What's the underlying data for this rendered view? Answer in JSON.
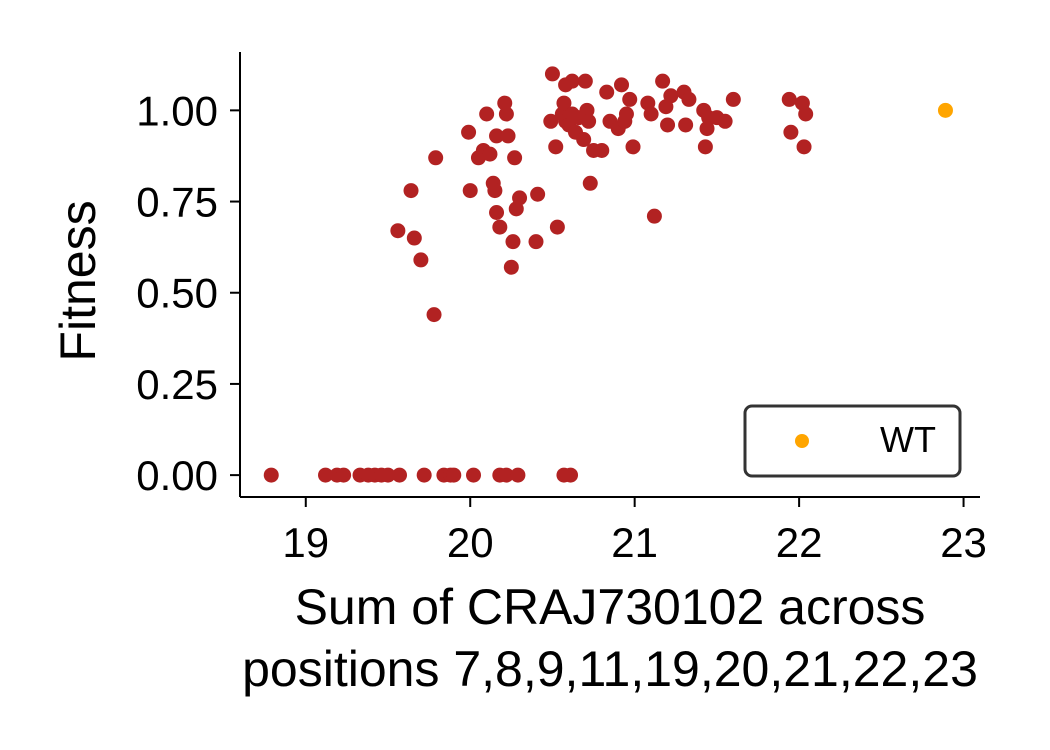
{
  "chart_data": {
    "type": "scatter",
    "xlabel_lines": [
      "Sum of CRAJ730102 across",
      "positions 7,8,9,11,19,20,21,22,23"
    ],
    "ylabel": "Fitness",
    "xlim": [
      18.6,
      23.1
    ],
    "ylim": [
      -0.06,
      1.16
    ],
    "x_ticks": [
      19,
      20,
      21,
      22,
      23
    ],
    "x_tick_labels": [
      "19",
      "20",
      "21",
      "22",
      "23"
    ],
    "y_ticks": [
      0,
      0.25,
      0.5,
      0.75,
      1.0
    ],
    "y_tick_labels": [
      "0.00",
      "0.25",
      "0.50",
      "0.75",
      "1.00"
    ],
    "grid": false,
    "legend_position": "lower-right",
    "series": [
      {
        "color": "#b22222",
        "points": [
          [
            18.79,
            0.0
          ],
          [
            19.12,
            0.0
          ],
          [
            19.19,
            0.0
          ],
          [
            19.23,
            0.0
          ],
          [
            19.33,
            0.0
          ],
          [
            19.38,
            0.0
          ],
          [
            19.42,
            0.0
          ],
          [
            19.46,
            0.0
          ],
          [
            19.5,
            0.0
          ],
          [
            19.57,
            0.0
          ],
          [
            19.72,
            0.0
          ],
          [
            19.84,
            0.0
          ],
          [
            19.88,
            0.0
          ],
          [
            19.9,
            0.0
          ],
          [
            20.02,
            0.0
          ],
          [
            20.18,
            0.0
          ],
          [
            20.22,
            0.0
          ],
          [
            20.29,
            0.0
          ],
          [
            20.57,
            0.0
          ],
          [
            20.61,
            0.0
          ],
          [
            19.78,
            0.44
          ],
          [
            19.7,
            0.59
          ],
          [
            19.66,
            0.65
          ],
          [
            19.56,
            0.67
          ],
          [
            19.64,
            0.78
          ],
          [
            19.79,
            0.87
          ],
          [
            19.99,
            0.94
          ],
          [
            20.0,
            0.78
          ],
          [
            20.05,
            0.87
          ],
          [
            20.08,
            0.89
          ],
          [
            20.1,
            0.99
          ],
          [
            20.12,
            0.88
          ],
          [
            20.14,
            0.8
          ],
          [
            20.15,
            0.78
          ],
          [
            20.16,
            0.72
          ],
          [
            20.18,
            0.68
          ],
          [
            20.16,
            0.93
          ],
          [
            20.21,
            1.02
          ],
          [
            20.22,
            0.99
          ],
          [
            20.23,
            0.93
          ],
          [
            20.25,
            0.57
          ],
          [
            20.26,
            0.64
          ],
          [
            20.27,
            0.87
          ],
          [
            20.28,
            0.73
          ],
          [
            20.3,
            0.76
          ],
          [
            20.4,
            0.64
          ],
          [
            20.41,
            0.77
          ],
          [
            20.49,
            0.97
          ],
          [
            20.5,
            1.1
          ],
          [
            20.52,
            0.9
          ],
          [
            20.53,
            0.68
          ],
          [
            20.56,
            0.99
          ],
          [
            20.57,
            1.02
          ],
          [
            20.58,
            0.97
          ],
          [
            20.58,
            1.07
          ],
          [
            20.6,
            0.96
          ],
          [
            20.62,
            0.99
          ],
          [
            20.62,
            1.08
          ],
          [
            20.64,
            0.94
          ],
          [
            20.66,
            0.98
          ],
          [
            20.69,
            0.92
          ],
          [
            20.7,
            1.08
          ],
          [
            20.71,
            1.0
          ],
          [
            20.72,
            0.97
          ],
          [
            20.73,
            0.8
          ],
          [
            20.75,
            0.89
          ],
          [
            20.8,
            0.89
          ],
          [
            20.83,
            1.05
          ],
          [
            20.85,
            0.97
          ],
          [
            20.9,
            0.95
          ],
          [
            20.92,
            1.07
          ],
          [
            20.94,
            0.97
          ],
          [
            20.95,
            0.99
          ],
          [
            20.97,
            1.03
          ],
          [
            20.99,
            0.9
          ],
          [
            21.08,
            1.02
          ],
          [
            21.1,
            0.99
          ],
          [
            21.12,
            0.71
          ],
          [
            21.17,
            1.08
          ],
          [
            21.19,
            1.01
          ],
          [
            21.2,
            0.96
          ],
          [
            21.22,
            1.04
          ],
          [
            21.3,
            1.05
          ],
          [
            21.31,
            0.96
          ],
          [
            21.33,
            1.03
          ],
          [
            21.42,
            1.0
          ],
          [
            21.43,
            0.9
          ],
          [
            21.44,
            0.95
          ],
          [
            21.45,
            0.98
          ],
          [
            21.5,
            0.98
          ],
          [
            21.55,
            0.97
          ],
          [
            21.6,
            1.03
          ],
          [
            21.94,
            1.03
          ],
          [
            21.95,
            0.94
          ],
          [
            22.02,
            1.02
          ],
          [
            22.03,
            0.9
          ],
          [
            22.04,
            0.99
          ]
        ]
      },
      {
        "name": "WT",
        "color": "#ffa500",
        "points": [
          [
            22.89,
            1.0
          ]
        ]
      }
    ]
  }
}
